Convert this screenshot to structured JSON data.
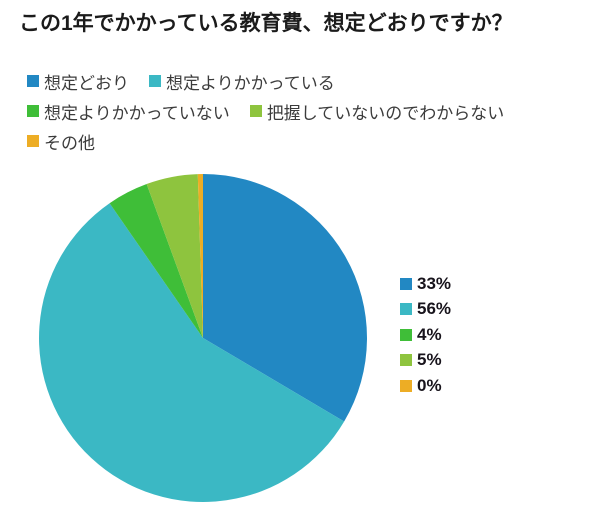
{
  "chart_data": {
    "type": "pie",
    "title": "この1年でかかっている教育費、想定どおりですか？",
    "categories": [
      "想定どおり",
      "想定よりかかっている",
      "想定よりかかっていない",
      "把握していないのでわからない",
      "その他"
    ],
    "values": [
      33,
      56,
      4,
      5,
      0
    ],
    "value_labels": [
      "33%",
      "56%",
      "4%",
      "5%",
      "0%"
    ],
    "colors": [
      "#2288c3",
      "#3bb8c4",
      "#3fbe38",
      "#8ec43e",
      "#edad25"
    ],
    "legend_position": "top-left",
    "value_labels_position": "right-middle",
    "start_angle_deg": 0,
    "direction": "clockwise"
  },
  "style_colors": {
    "background": "#ffffff",
    "title_text": "#1b1b1b",
    "legend_text": "#3c3c3c",
    "value_label_text": "#18141c"
  }
}
